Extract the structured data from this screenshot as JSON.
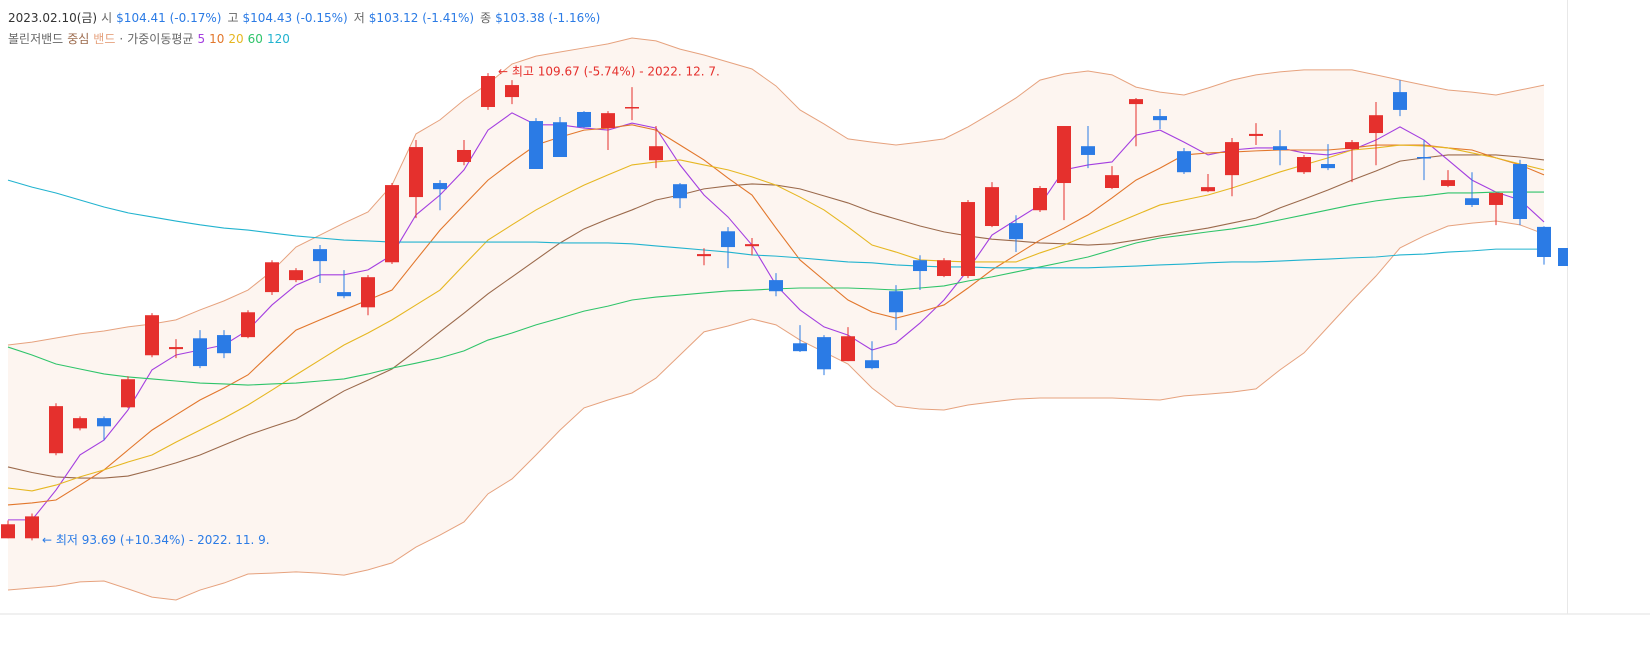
{
  "chart_data": {
    "type": "candlestick",
    "info": {
      "date": "2023.02.10(금)",
      "items": [
        {
          "label": "시",
          "value": "$104.41 (-0.17%)"
        },
        {
          "label": "고",
          "value": "$104.43 (-0.15%)"
        },
        {
          "label": "저",
          "value": "$103.12 (-1.41%)"
        },
        {
          "label": "종",
          "value": "$103.38 (-1.16%)"
        }
      ]
    },
    "up_color": "#e5302d",
    "down_color": "#2b7be5",
    "open": [
      93.76,
      93.76,
      96.67,
      97.52,
      97.87,
      98.24,
      100.02,
      100.23,
      100.6,
      100.71,
      100.64,
      102.18,
      102.59,
      103.65,
      102.18,
      101.66,
      103.2,
      105.43,
      105.91,
      106.63,
      108.51,
      108.85,
      108.03,
      107.99,
      108.34,
      107.79,
      108.51,
      106.69,
      105.87,
      103.41,
      104.26,
      103.75,
      102.59,
      100.43,
      100.64,
      99.82,
      99.85,
      102.21,
      103.27,
      102.73,
      102.73,
      104.44,
      104.54,
      104.98,
      105.91,
      107.17,
      105.74,
      108.61,
      108.2,
      107.0,
      105.63,
      106.18,
      107.52,
      107.17,
      106.28,
      106.56,
      107.07,
      107.62,
      109.02,
      106.8,
      105.81,
      105.39,
      105.16,
      106.56,
      104.41
    ],
    "high": [
      94.37,
      94.61,
      98.38,
      97.93,
      97.93,
      99.3,
      101.46,
      100.57,
      100.88,
      100.88,
      101.56,
      103.27,
      103.0,
      103.79,
      102.93,
      102.76,
      105.91,
      107.38,
      106.01,
      107.38,
      109.67,
      109.43,
      108.13,
      108.17,
      108.37,
      108.37,
      109.19,
      107.86,
      105.91,
      103.68,
      104.4,
      104.03,
      102.83,
      101.05,
      100.71,
      100.98,
      100.5,
      102.42,
      103.44,
      103.34,
      105.33,
      105.94,
      104.81,
      105.81,
      107.86,
      107.86,
      106.49,
      108.82,
      108.44,
      107.11,
      106.22,
      107.45,
      107.96,
      107.72,
      106.87,
      107.24,
      107.38,
      108.68,
      109.43,
      107.38,
      106.35,
      106.28,
      105.6,
      106.7,
      104.43
    ],
    "low": [
      93.76,
      93.69,
      96.6,
      97.45,
      97.11,
      98.21,
      99.95,
      99.92,
      99.58,
      99.92,
      100.6,
      102.08,
      102.52,
      102.49,
      101.97,
      101.39,
      103.14,
      104.71,
      104.98,
      106.52,
      108.41,
      108.61,
      106.39,
      106.8,
      107.79,
      107.04,
      108.06,
      106.42,
      105.05,
      103.1,
      103.0,
      103.44,
      102.04,
      100.13,
      99.34,
      99.82,
      99.54,
      100.88,
      102.25,
      102.69,
      102.66,
      104.4,
      103.55,
      104.92,
      104.64,
      106.42,
      105.7,
      107.17,
      107.76,
      106.22,
      105.6,
      105.46,
      107.21,
      106.52,
      106.22,
      106.35,
      105.94,
      106.52,
      108.2,
      106.01,
      105.77,
      105.09,
      104.47,
      104.47,
      103.12
    ],
    "close": [
      94.24,
      94.51,
      98.28,
      97.87,
      97.59,
      99.2,
      101.39,
      100.3,
      99.65,
      100.09,
      101.49,
      103.2,
      102.93,
      103.24,
      102.04,
      102.69,
      105.84,
      107.14,
      105.7,
      107.04,
      109.57,
      109.26,
      106.39,
      106.8,
      107.82,
      108.3,
      108.51,
      107.17,
      105.39,
      103.48,
      103.72,
      103.82,
      102.21,
      100.16,
      99.54,
      100.67,
      99.58,
      101.49,
      102.9,
      103.27,
      105.26,
      105.77,
      103.99,
      105.74,
      107.86,
      106.87,
      106.18,
      108.78,
      108.06,
      106.28,
      105.77,
      107.31,
      107.59,
      107.04,
      106.8,
      106.42,
      107.31,
      108.23,
      108.41,
      106.76,
      106.01,
      105.16,
      105.57,
      104.68,
      103.38
    ],
    "indicators": [
      {
        "name": "볼린저밴드",
        "series": [
          {
            "name": "중심",
            "color": "#9b6a4c",
            "values": [
              96.2,
              96.01,
              95.86,
              95.82,
              95.82,
              95.89,
              96.1,
              96.34,
              96.61,
              96.95,
              97.29,
              97.57,
              97.84,
              98.32,
              98.8,
              99.17,
              99.55,
              100.17,
              100.82,
              101.46,
              102.12,
              102.7,
              103.28,
              103.86,
              104.34,
              104.68,
              104.99,
              105.33,
              105.5,
              105.71,
              105.81,
              105.88,
              105.84,
              105.71,
              105.47,
              105.23,
              104.92,
              104.68,
              104.44,
              104.24,
              104.1,
              103.99,
              103.93,
              103.86,
              103.83,
              103.79,
              103.83,
              103.96,
              104.1,
              104.24,
              104.37,
              104.54,
              104.71,
              105.06,
              105.36,
              105.67,
              106.01,
              106.32,
              106.66,
              106.77,
              106.87,
              106.87,
              106.87,
              106.8,
              106.7
            ]
          },
          {
            "name": "밴드",
            "color": "#e6a27e",
            "fill": "#fdf5f0",
            "upper": [
              100.37,
              100.47,
              100.61,
              100.75,
              100.85,
              100.99,
              101.09,
              101.23,
              101.57,
              101.88,
              102.25,
              102.9,
              103.72,
              104.13,
              104.54,
              104.92,
              105.84,
              107.59,
              108.07,
              108.75,
              109.3,
              109.98,
              110.25,
              110.39,
              110.53,
              110.67,
              110.87,
              110.77,
              110.49,
              110.29,
              110.05,
              109.81,
              109.23,
              108.41,
              107.93,
              107.42,
              107.31,
              107.21,
              107.31,
              107.42,
              107.83,
              108.31,
              108.82,
              109.43,
              109.64,
              109.74,
              109.61,
              109.19,
              109.02,
              108.92,
              109.16,
              109.43,
              109.61,
              109.71,
              109.78,
              109.78,
              109.78,
              109.61,
              109.43,
              109.26,
              109.09,
              109.02,
              108.92,
              109.09,
              109.26
            ],
            "lower": [
              91.99,
              92.06,
              92.13,
              92.27,
              92.3,
              92.03,
              91.75,
              91.65,
              91.99,
              92.23,
              92.54,
              92.57,
              92.61,
              92.57,
              92.5,
              92.68,
              92.92,
              93.46,
              93.87,
              94.32,
              95.28,
              95.79,
              96.61,
              97.46,
              98.22,
              98.49,
              98.73,
              99.24,
              100.03,
              100.82,
              101.02,
              101.26,
              101.06,
              100.54,
              100.13,
              99.72,
              98.9,
              98.28,
              98.18,
              98.15,
              98.32,
              98.42,
              98.52,
              98.56,
              98.56,
              98.56,
              98.56,
              98.52,
              98.49,
              98.63,
              98.69,
              98.76,
              98.87,
              99.52,
              100.1,
              100.99,
              101.88,
              102.73,
              103.69,
              104.1,
              104.44,
              104.54,
              104.61,
              104.48,
              104.17
            ]
          }
        ]
      },
      {
        "name": "가중이동평균",
        "series": [
          {
            "name": "5",
            "color": "#a43fe0",
            "values": [
              94.39,
              94.39,
              95.41,
              96.61,
              97.12,
              98.15,
              99.52,
              100.03,
              100.2,
              100.37,
              100.88,
              101.74,
              102.42,
              102.77,
              102.77,
              102.94,
              103.45,
              104.82,
              105.5,
              106.36,
              107.72,
              108.31,
              107.9,
              107.9,
              107.79,
              107.72,
              107.96,
              107.79,
              106.53,
              105.5,
              104.75,
              103.79,
              102.42,
              101.57,
              100.99,
              100.71,
              100.2,
              100.44,
              101.12,
              101.91,
              102.94,
              104.13,
              104.65,
              105.16,
              106.36,
              106.53,
              106.63,
              107.55,
              107.72,
              107.31,
              106.87,
              107.04,
              107.11,
              107.11,
              106.94,
              106.87,
              107.04,
              107.38,
              107.83,
              107.38,
              106.7,
              106.01,
              105.6,
              105.33,
              104.58
            ]
          },
          {
            "name": "10",
            "color": "#e2772c",
            "values": [
              94.9,
              94.97,
              95.07,
              95.58,
              96.1,
              96.78,
              97.46,
              97.98,
              98.49,
              98.9,
              99.35,
              100.13,
              100.88,
              101.23,
              101.57,
              101.91,
              102.25,
              103.28,
              104.3,
              105.16,
              106.01,
              106.63,
              107.21,
              107.48,
              107.72,
              107.79,
              107.9,
              107.72,
              107.21,
              106.7,
              106.08,
              105.5,
              104.37,
              103.28,
              102.59,
              101.91,
              101.5,
              101.29,
              101.5,
              101.74,
              102.32,
              102.94,
              103.45,
              103.96,
              104.37,
              104.82,
              105.4,
              106.01,
              106.42,
              106.87,
              106.94,
              106.97,
              107.01,
              107.04,
              107.04,
              107.04,
              107.11,
              107.21,
              107.21,
              107.21,
              107.11,
              107.04,
              106.77,
              106.53,
              106.19
            ]
          },
          {
            "name": "20",
            "color": "#e6b722",
            "values": [
              95.48,
              95.38,
              95.58,
              95.86,
              96.1,
              96.37,
              96.61,
              97.05,
              97.46,
              97.87,
              98.32,
              98.83,
              99.35,
              99.86,
              100.37,
              100.78,
              101.23,
              101.74,
              102.25,
              103.11,
              103.96,
              104.48,
              104.99,
              105.43,
              105.84,
              106.19,
              106.53,
              106.63,
              106.7,
              106.53,
              106.36,
              106.12,
              105.84,
              105.43,
              104.99,
              104.41,
              103.79,
              103.55,
              103.28,
              103.24,
              103.21,
              103.21,
              103.21,
              103.52,
              103.79,
              104.13,
              104.48,
              104.82,
              105.16,
              105.33,
              105.5,
              105.74,
              106.01,
              106.29,
              106.53,
              106.77,
              107.04,
              107.11,
              107.21,
              107.18,
              107.11,
              106.94,
              106.77,
              106.56,
              106.36
            ]
          },
          {
            "name": "60",
            "color": "#2fc46a",
            "values": [
              100.3,
              100.03,
              99.72,
              99.55,
              99.38,
              99.28,
              99.21,
              99.14,
              99.07,
              99.04,
              99.0,
              99.04,
              99.07,
              99.14,
              99.21,
              99.38,
              99.58,
              99.75,
              99.93,
              100.17,
              100.54,
              100.78,
              101.06,
              101.29,
              101.53,
              101.7,
              101.91,
              102.01,
              102.08,
              102.15,
              102.22,
              102.25,
              102.29,
              102.32,
              102.32,
              102.32,
              102.29,
              102.25,
              102.32,
              102.39,
              102.56,
              102.7,
              102.87,
              103.04,
              103.21,
              103.38,
              103.62,
              103.86,
              104.03,
              104.13,
              104.24,
              104.34,
              104.48,
              104.65,
              104.82,
              104.99,
              105.16,
              105.3,
              105.4,
              105.47,
              105.57,
              105.57,
              105.6,
              105.6,
              105.6
            ]
          },
          {
            "name": "120",
            "color": "#22b3cf",
            "values": [
              106.01,
              105.77,
              105.57,
              105.33,
              105.09,
              104.89,
              104.75,
              104.61,
              104.48,
              104.37,
              104.3,
              104.2,
              104.1,
              104.03,
              103.96,
              103.93,
              103.89,
              103.89,
              103.89,
              103.89,
              103.89,
              103.89,
              103.89,
              103.86,
              103.86,
              103.86,
              103.83,
              103.76,
              103.69,
              103.62,
              103.55,
              103.45,
              103.41,
              103.35,
              103.28,
              103.21,
              103.18,
              103.11,
              103.07,
              103.04,
              103.04,
              103.01,
              103.01,
              103.01,
              103.01,
              103.01,
              103.04,
              103.07,
              103.11,
              103.14,
              103.18,
              103.21,
              103.21,
              103.24,
              103.28,
              103.31,
              103.35,
              103.38,
              103.45,
              103.48,
              103.55,
              103.59,
              103.65,
              103.65,
              103.65
            ]
          }
        ]
      }
    ],
    "separator": "·",
    "annotations": [
      {
        "text": "← 최고 109.67 (-5.74%) - 2022. 12. 7."
      },
      {
        "text": "← 최저 93.69 (+10.34%) - 2022. 11. 9."
      }
    ]
  }
}
